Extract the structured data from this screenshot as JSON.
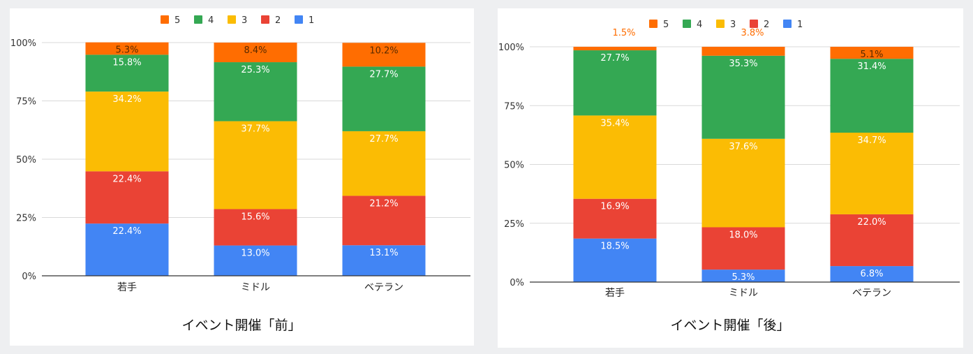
{
  "chart_data": [
    {
      "type": "bar",
      "stacked": true,
      "percent": true,
      "title": "イベント開催「前」",
      "categories": [
        "若手",
        "ミドル",
        "ベテラン"
      ],
      "yticks": [
        "0%",
        "25%",
        "50%",
        "75%",
        "100%"
      ],
      "ylim": [
        0,
        100
      ],
      "grid": true,
      "legend_position": "top",
      "legend_order": [
        "5",
        "4",
        "3",
        "2",
        "1"
      ],
      "series": [
        {
          "name": "1",
          "color": "#4285f4",
          "values": [
            22.4,
            13.0,
            13.1
          ],
          "labels": [
            "22.4%",
            "13.0%",
            "13.1%"
          ]
        },
        {
          "name": "2",
          "color": "#ea4335",
          "values": [
            22.4,
            15.6,
            21.2
          ],
          "labels": [
            "22.4%",
            "15.6%",
            "21.2%"
          ]
        },
        {
          "name": "3",
          "color": "#fbbc04",
          "values": [
            34.2,
            37.7,
            27.7
          ],
          "labels": [
            "34.2%",
            "37.7%",
            "27.7%"
          ]
        },
        {
          "name": "4",
          "color": "#34a853",
          "values": [
            15.8,
            25.3,
            27.7
          ],
          "labels": [
            "15.8%",
            "25.3%",
            "27.7%"
          ]
        },
        {
          "name": "5",
          "color": "#ff6d01",
          "values": [
            5.3,
            8.4,
            10.2
          ],
          "labels": [
            "5.3%",
            "8.4%",
            "10.2%"
          ]
        }
      ]
    },
    {
      "type": "bar",
      "stacked": true,
      "percent": true,
      "title": "イベント開催「後」",
      "categories": [
        "若手",
        "ミドル",
        "ベテラン"
      ],
      "yticks": [
        "0%",
        "25%",
        "50%",
        "75%",
        "100%"
      ],
      "ylim": [
        0,
        100
      ],
      "grid": true,
      "legend_position": "top",
      "legend_order": [
        "5",
        "4",
        "3",
        "2",
        "1"
      ],
      "series": [
        {
          "name": "1",
          "color": "#4285f4",
          "values": [
            18.5,
            5.3,
            6.8
          ],
          "labels": [
            "18.5%",
            "5.3%",
            "6.8%"
          ]
        },
        {
          "name": "2",
          "color": "#ea4335",
          "values": [
            16.9,
            18.0,
            22.0
          ],
          "labels": [
            "16.9%",
            "18.0%",
            "22.0%"
          ]
        },
        {
          "name": "3",
          "color": "#fbbc04",
          "values": [
            35.4,
            37.6,
            34.7
          ],
          "labels": [
            "35.4%",
            "37.6%",
            "34.7%"
          ]
        },
        {
          "name": "4",
          "color": "#34a853",
          "values": [
            27.7,
            35.3,
            31.4
          ],
          "labels": [
            "27.7%",
            "35.3%",
            "31.4%"
          ]
        },
        {
          "name": "5",
          "color": "#ff6d01",
          "values": [
            1.5,
            3.8,
            5.1
          ],
          "labels": [
            "1.5%",
            "3.8%",
            "5.1%"
          ],
          "outside_labels": [
            true,
            true,
            false
          ]
        }
      ]
    }
  ]
}
